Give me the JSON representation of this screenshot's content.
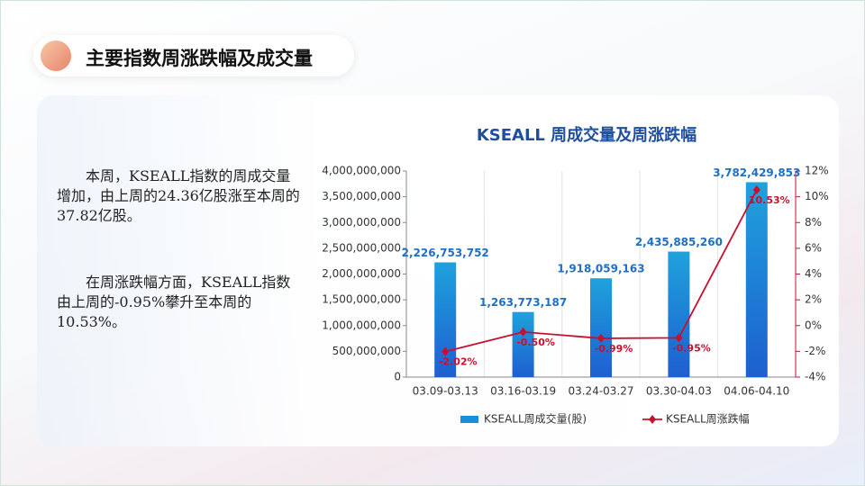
{
  "header": {
    "title": "主要指数周涨跌幅及成交量"
  },
  "paragraphs": [
    "本周，KSEALL指数的周成交量增加，由上周的24.36亿股涨至本周的37.82亿股。",
    "在周涨跌幅方面，KSEALL指数由上周的-0.95%攀升至本周的10.53%。"
  ],
  "chart_data": {
    "type": "bar",
    "title": "KSEALL 周成交量及周涨跌幅",
    "categories": [
      "03.09-03.13",
      "03.16-03.19",
      "03.24-03.27",
      "03.30-04.03",
      "04.06-04.10"
    ],
    "series": [
      {
        "name": "KSEALL周成交量(股)",
        "type": "bar",
        "color": "#1a8fd6",
        "values": [
          2226753752,
          1263773187,
          1918059163,
          2435885260,
          3782429853
        ],
        "value_labels": [
          "2,226,753,752",
          "1,263,773,187",
          "1,918,059,163",
          "2,435,885,260",
          "3,782,429,853"
        ]
      },
      {
        "name": "KSEALL周涨跌幅",
        "type": "line",
        "axis": "y2",
        "color": "#c8102e",
        "values": [
          -2.02,
          -0.5,
          -0.99,
          -0.95,
          10.53
        ],
        "value_labels": [
          "-2.02%",
          "-0.50%",
          "-0.99%",
          "-0.95%",
          "10.53%"
        ]
      }
    ],
    "ylim": [
      0,
      4000000000
    ],
    "yticks": [
      {
        "value": 0,
        "label": "0"
      },
      {
        "value": 500000000,
        "label": "500,000,000"
      },
      {
        "value": 1000000000,
        "label": "1,000,000,000"
      },
      {
        "value": 1500000000,
        "label": "1,500,000,000"
      },
      {
        "value": 2000000000,
        "label": "2,000,000,000"
      },
      {
        "value": 2500000000,
        "label": "2,500,000,000"
      },
      {
        "value": 3000000000,
        "label": "3,000,000,000"
      },
      {
        "value": 3500000000,
        "label": "3,500,000,000"
      },
      {
        "value": 4000000000,
        "label": "4,000,000,000"
      }
    ],
    "y2lim": [
      -4,
      12
    ],
    "y2ticks": [
      {
        "value": -4,
        "label": "-4%"
      },
      {
        "value": -2,
        "label": "-2%"
      },
      {
        "value": 0,
        "label": "0%"
      },
      {
        "value": 2,
        "label": "2%"
      },
      {
        "value": 4,
        "label": "4%"
      },
      {
        "value": 6,
        "label": "6%"
      },
      {
        "value": 8,
        "label": "8%"
      },
      {
        "value": 10,
        "label": "10%"
      },
      {
        "value": 12,
        "label": "12%"
      }
    ],
    "grid": true,
    "legend": "bottom"
  }
}
